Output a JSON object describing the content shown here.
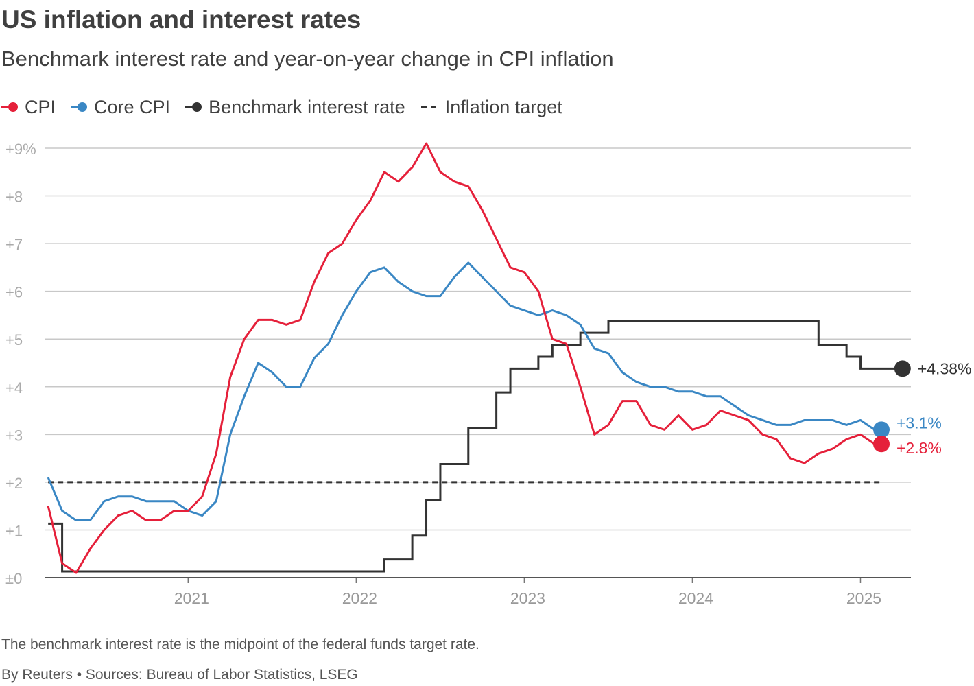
{
  "header": {
    "title": "US inflation and interest rates",
    "subtitle": "Benchmark interest rate and year-on-year change in CPI inflation"
  },
  "footer": {
    "note": "The benchmark interest rate is the midpoint of the federal funds target rate.",
    "source": "By Reuters • Sources: Bureau of Labor Statistics, LSEG"
  },
  "colors": {
    "cpi": "#e5203a",
    "core": "#3a87c4",
    "rate": "#333333",
    "target": "#333333",
    "grid": "#c8c8c8",
    "tick": "#aaaaaa"
  },
  "chart_data": {
    "type": "line",
    "title": "US inflation and interest rates",
    "subtitle": "Benchmark interest rate and year-on-year change in CPI inflation",
    "xlabel": "",
    "ylabel": "",
    "ylim": [
      0,
      9
    ],
    "xlim": [
      2020.15,
      2025.3
    ],
    "grid": true,
    "legend_position": "top-left",
    "y_ticks": [
      {
        "value": 0,
        "label": "±0"
      },
      {
        "value": 1,
        "label": "+1"
      },
      {
        "value": 2,
        "label": "+2"
      },
      {
        "value": 3,
        "label": "+3"
      },
      {
        "value": 4,
        "label": "+4"
      },
      {
        "value": 5,
        "label": "+5"
      },
      {
        "value": 6,
        "label": "+6"
      },
      {
        "value": 7,
        "label": "+7"
      },
      {
        "value": 8,
        "label": "+8"
      },
      {
        "value": 9,
        "label": "+9%"
      }
    ],
    "x_ticks": [
      {
        "value": 2021.0,
        "label": "2021"
      },
      {
        "value": 2022.0,
        "label": "2022"
      },
      {
        "value": 2023.0,
        "label": "2023"
      },
      {
        "value": 2024.0,
        "label": "2024"
      },
      {
        "value": 2025.0,
        "label": "2025"
      }
    ],
    "series": [
      {
        "name": "CPI",
        "key": "cpi",
        "end_label": "+2.8%",
        "values": [
          1.5,
          0.3,
          0.1,
          0.6,
          1.0,
          1.3,
          1.4,
          1.2,
          1.2,
          1.4,
          1.4,
          1.7,
          2.6,
          4.2,
          5.0,
          5.4,
          5.4,
          5.3,
          5.4,
          6.2,
          6.8,
          7.0,
          7.5,
          7.9,
          8.5,
          8.3,
          8.6,
          9.1,
          8.5,
          8.3,
          8.2,
          7.7,
          7.1,
          6.5,
          6.4,
          6.0,
          5.0,
          4.9,
          4.0,
          3.0,
          3.2,
          3.7,
          3.7,
          3.2,
          3.1,
          3.4,
          3.1,
          3.2,
          3.5,
          3.4,
          3.3,
          3.0,
          2.9,
          2.5,
          2.4,
          2.6,
          2.7,
          2.9,
          3.0,
          2.8
        ]
      },
      {
        "name": "Core CPI",
        "key": "core",
        "end_label": "+3.1%",
        "values": [
          2.1,
          1.4,
          1.2,
          1.2,
          1.6,
          1.7,
          1.7,
          1.6,
          1.6,
          1.6,
          1.4,
          1.3,
          1.6,
          3.0,
          3.8,
          4.5,
          4.3,
          4.0,
          4.0,
          4.6,
          4.9,
          5.5,
          6.0,
          6.4,
          6.5,
          6.2,
          6.0,
          5.9,
          5.9,
          6.3,
          6.6,
          6.3,
          6.0,
          5.7,
          5.6,
          5.5,
          5.6,
          5.5,
          5.3,
          4.8,
          4.7,
          4.3,
          4.1,
          4.0,
          4.0,
          3.9,
          3.9,
          3.8,
          3.8,
          3.6,
          3.4,
          3.3,
          3.2,
          3.2,
          3.3,
          3.3,
          3.3,
          3.2,
          3.3,
          3.1
        ]
      },
      {
        "name": "Benchmark interest rate",
        "key": "rate",
        "end_label": "+4.38%",
        "values": [
          1.13,
          0.13,
          0.13,
          0.13,
          0.13,
          0.13,
          0.13,
          0.13,
          0.13,
          0.13,
          0.13,
          0.13,
          0.13,
          0.13,
          0.13,
          0.13,
          0.13,
          0.13,
          0.13,
          0.13,
          0.13,
          0.13,
          0.13,
          0.13,
          0.38,
          0.38,
          0.88,
          1.63,
          2.38,
          2.38,
          3.13,
          3.13,
          3.88,
          4.38,
          4.38,
          4.63,
          4.88,
          4.88,
          5.13,
          5.13,
          5.38,
          5.38,
          5.38,
          5.38,
          5.38,
          5.38,
          5.38,
          5.38,
          5.38,
          5.38,
          5.38,
          5.38,
          5.38,
          5.38,
          5.38,
          4.88,
          4.88,
          4.63,
          4.38,
          4.38,
          4.38,
          4.38
        ]
      },
      {
        "name": "Inflation target",
        "key": "target",
        "values": [
          2,
          2
        ]
      }
    ]
  }
}
